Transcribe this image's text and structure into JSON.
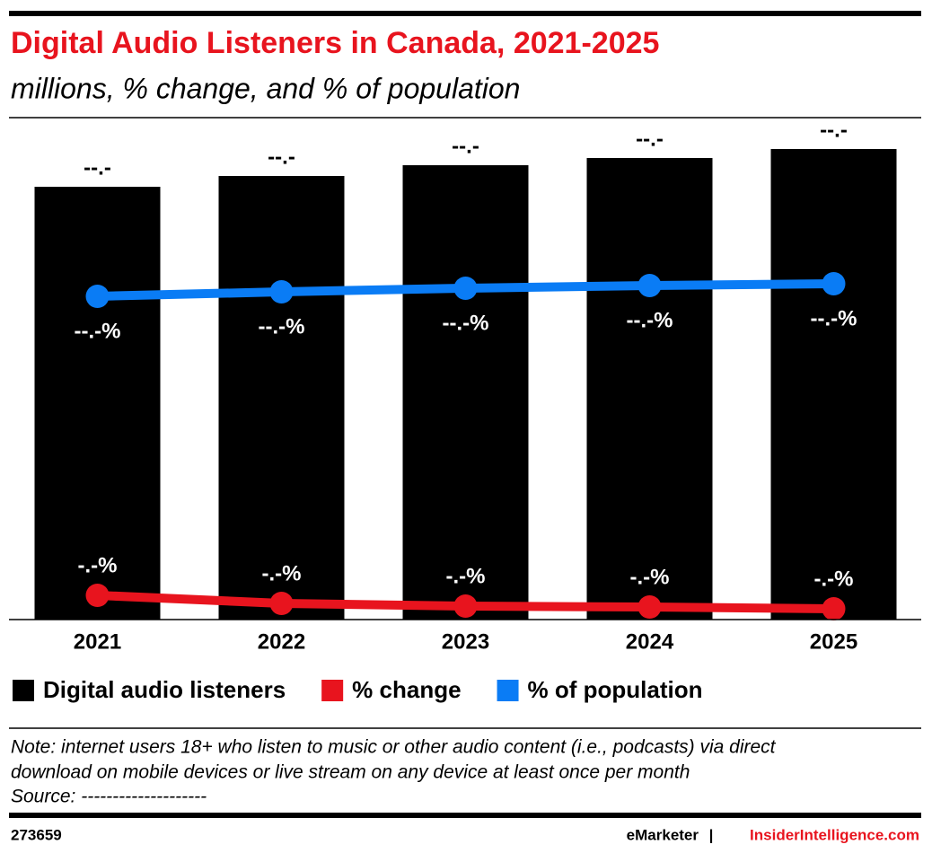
{
  "chart_data": {
    "type": "bar",
    "title": "Digital Audio Listeners in Canada, 2021-2025",
    "subtitle": "millions, % change, and % of population",
    "categories": [
      "2021",
      "2022",
      "2023",
      "2024",
      "2025"
    ],
    "ylim": [
      0,
      28
    ],
    "y2lim": [
      0,
      112
    ],
    "y3lim": [
      0,
      56
    ],
    "series": [
      {
        "name": "Digital audio listeners",
        "color": "#000000",
        "type": "bar",
        "values": [
          24.1,
          24.7,
          25.3,
          25.7,
          26.2
        ],
        "value_labels": [
          "--.-",
          "--.-",
          "--.-",
          "--.-",
          "--.-"
        ]
      },
      {
        "name": "% change",
        "color": "#e8141e",
        "type": "line",
        "axis": "y3",
        "values": [
          2.7,
          1.8,
          1.5,
          1.4,
          1.2
        ],
        "value_labels": [
          "-.-%",
          "-.-%",
          "-.-%",
          "-.-%",
          "-.-%"
        ]
      },
      {
        "name": "% of population",
        "color": "#0a7cf5",
        "type": "line",
        "axis": "y2",
        "values": [
          72.0,
          73.0,
          73.8,
          74.4,
          74.8
        ],
        "value_labels": [
          "--.-%",
          "--.-%",
          "--.-%",
          "--.-%",
          "--.-%"
        ]
      }
    ],
    "legend": "bottom-left",
    "note": [
      "Note: internet users 18+ who listen to music or other audio content (i.e., podcasts) via direct",
      "download on mobile devices or live stream on any device at least once per month"
    ],
    "source": "Source: --------------------",
    "footer": {
      "id": "273659",
      "brand": "eMarketer",
      "separator": "|",
      "site": "InsiderIntelligence.com"
    }
  }
}
